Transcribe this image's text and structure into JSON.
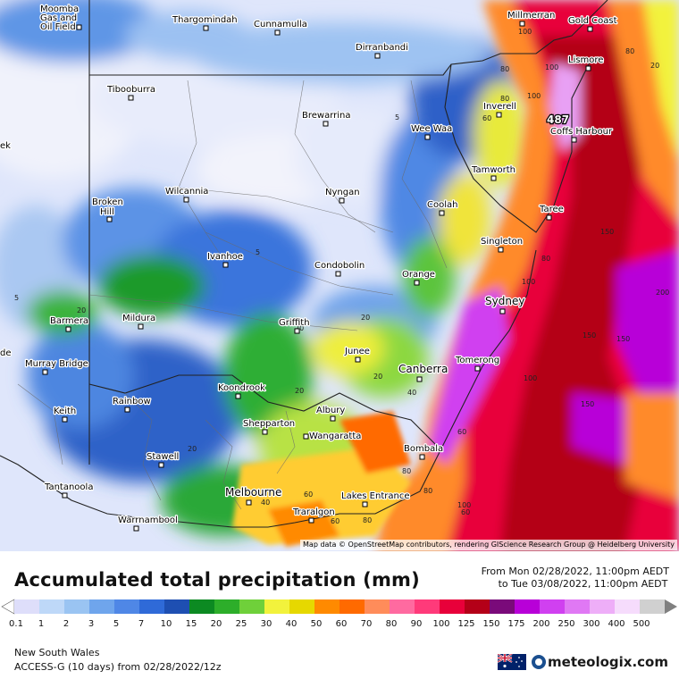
{
  "map": {
    "cities": [
      {
        "name": "Moomba Gas and Oil Field",
        "lines": [
          "Moomba",
          "Gas and",
          "Oil Field"
        ]
      },
      {
        "name": "Thargomindah"
      },
      {
        "name": "Cunnamulla"
      },
      {
        "name": "Millmerran"
      },
      {
        "name": "Gold Coast"
      },
      {
        "name": "Dirranbandi"
      },
      {
        "name": "Lismore"
      },
      {
        "name": "Tibooburra"
      },
      {
        "name": "Brewarrina"
      },
      {
        "name": "Inverell"
      },
      {
        "name": "Coffs Harbour"
      },
      {
        "name": "Wee Waa"
      },
      {
        "name": "Tamworth"
      },
      {
        "name": "Wilcannia"
      },
      {
        "name": "Nyngan"
      },
      {
        "name": "Broken Hill",
        "lines": [
          "Broken",
          "Hill"
        ]
      },
      {
        "name": "Coolah"
      },
      {
        "name": "Taree"
      },
      {
        "name": "Singleton"
      },
      {
        "name": "Ivanhoe"
      },
      {
        "name": "Condobolin"
      },
      {
        "name": "Orange"
      },
      {
        "name": "Sydney"
      },
      {
        "name": "Barmera"
      },
      {
        "name": "Mildura"
      },
      {
        "name": "Griffith"
      },
      {
        "name": "Junee"
      },
      {
        "name": "Canberra"
      },
      {
        "name": "Tomerong"
      },
      {
        "name": "Murray Bridge"
      },
      {
        "name": "Koondrook"
      },
      {
        "name": "Rainbow"
      },
      {
        "name": "Albury"
      },
      {
        "name": "Keith"
      },
      {
        "name": "Shepparton"
      },
      {
        "name": "Wangaratta"
      },
      {
        "name": "Bombala"
      },
      {
        "name": "Stawell"
      },
      {
        "name": "Tantanoola"
      },
      {
        "name": "Melbourne"
      },
      {
        "name": "Lakes Entrance"
      },
      {
        "name": "Warrnambool"
      },
      {
        "name": "Traralgon"
      }
    ],
    "edge_labels": {
      "left_top": "ek",
      "left_mid": "de"
    },
    "max_value": "487",
    "contour_labels": [
      "100",
      "100",
      "80",
      "100",
      "80",
      "60",
      "80",
      "20",
      "5",
      "5",
      "80",
      "100",
      "150",
      "20",
      "20",
      "20",
      "5",
      "20",
      "100",
      "40",
      "150",
      "150",
      "150",
      "200",
      "60",
      "100",
      "80",
      "80",
      "60",
      "60",
      "80",
      "60",
      "40",
      "20",
      "20"
    ],
    "attribution": "Map data © OpenStreetMap contributors, rendering GIScience Research Group @ Heidelberg University",
    "colors": {
      "land": "#f4f4f4",
      "ocean": "#ffffff"
    }
  },
  "header": {
    "title": "Accumulated total precipitation (mm)",
    "from": "From Mon 02/28/2022, 11:00pm AEDT",
    "to": "to Tue 03/08/2022, 11:00pm AEDT"
  },
  "legend": {
    "labels": [
      "0.1",
      "1",
      "2",
      "3",
      "5",
      "7",
      "10",
      "15",
      "20",
      "25",
      "30",
      "40",
      "50",
      "60",
      "70",
      "80",
      "90",
      "100",
      "125",
      "150",
      "175",
      "200",
      "250",
      "300",
      "400",
      "500"
    ],
    "colors": [
      "#dedefa",
      "#bed8f8",
      "#9ac4f2",
      "#6fa5ec",
      "#4f87e6",
      "#2f6ad8",
      "#1e4fb2",
      "#0c8a22",
      "#2dae2a",
      "#6fd03a",
      "#f2f23c",
      "#e6d800",
      "#ff8a00",
      "#ff6a00",
      "#ff8c5a",
      "#ff6aa0",
      "#ff3a7a",
      "#e8003a",
      "#b40018",
      "#7a0a7a",
      "#b800d8",
      "#d040f0",
      "#e078f4",
      "#eeaef8",
      "#f6dcfc",
      "#d0d0d0"
    ],
    "left_arrow_color": "#ffffff",
    "right_arrow_color": "#808080"
  },
  "footer": {
    "region": "New South Wales",
    "model": "ACCESS-G (10 days)  from  02/28/2022/12z",
    "brand": "meteologix.com"
  }
}
